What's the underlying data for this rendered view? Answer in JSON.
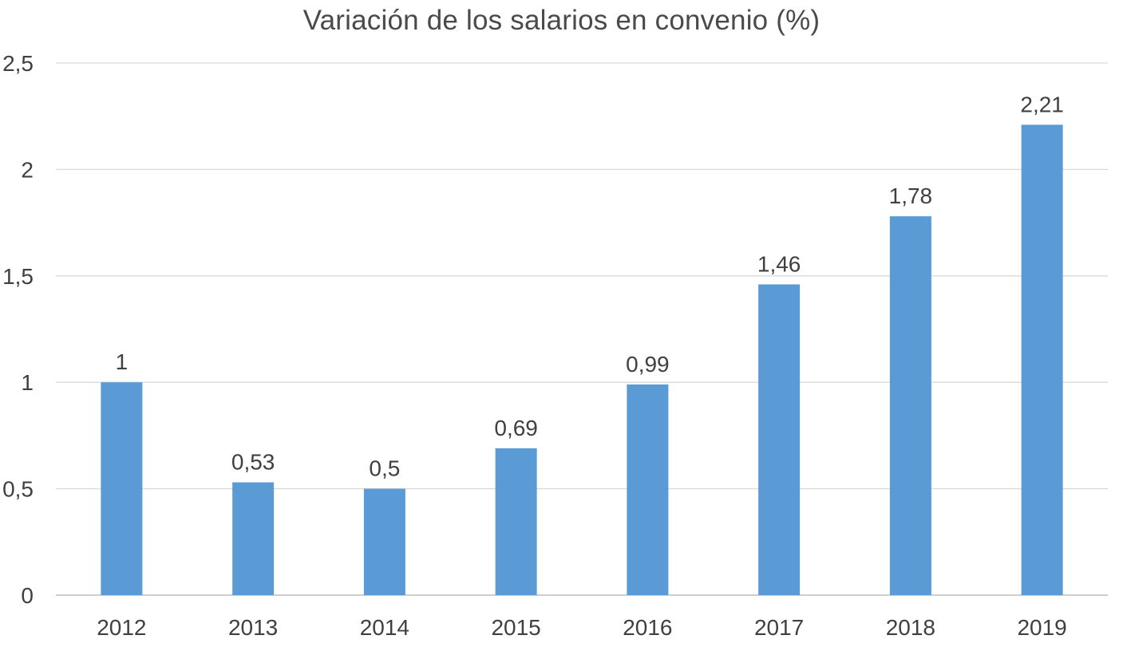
{
  "chart_data": {
    "type": "bar",
    "title": "Variación de los salarios en convenio (%)",
    "xlabel": "",
    "ylabel": "",
    "categories": [
      "2012",
      "2013",
      "2014",
      "2015",
      "2016",
      "2017",
      "2018",
      "2019"
    ],
    "values": [
      1,
      0.53,
      0.5,
      0.69,
      0.99,
      1.46,
      1.78,
      2.21
    ],
    "data_labels": [
      "1",
      "0,53",
      "0,5",
      "0,69",
      "0,99",
      "1,46",
      "1,78",
      "2,21"
    ],
    "ylim": [
      0,
      2.5
    ],
    "yticks": [
      0,
      0.5,
      1,
      1.5,
      2,
      2.5
    ],
    "ytick_labels": [
      "0",
      "0,5",
      "1",
      "1,5",
      "2",
      "2,5"
    ],
    "grid": true,
    "legend": "none",
    "colors": {
      "bar": "#5b9bd5",
      "grid": "#d9d9d9",
      "axis": "#bfbfbf",
      "text": "#404040"
    }
  }
}
